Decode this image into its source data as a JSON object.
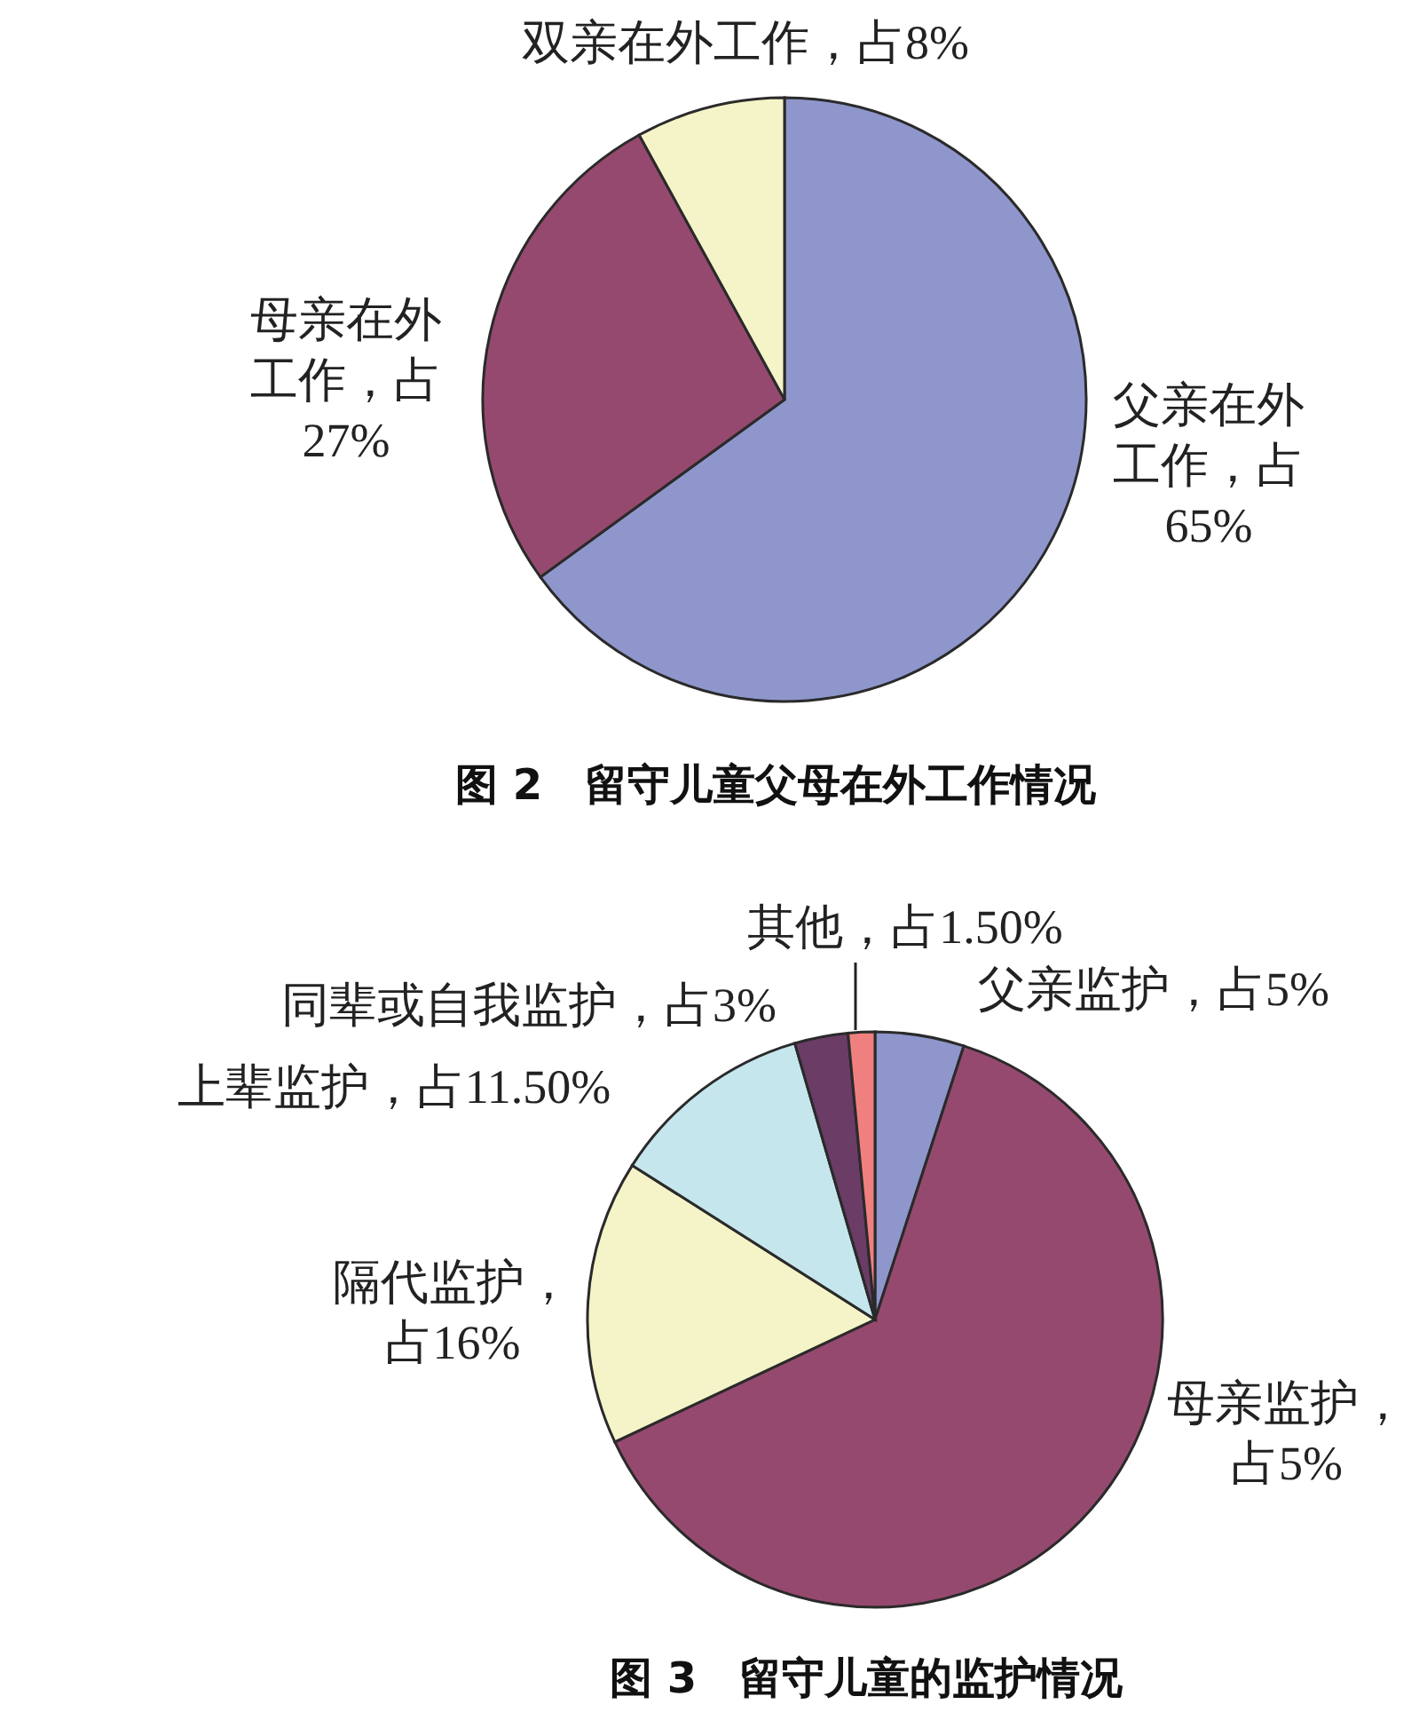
{
  "chart_data": [
    {
      "type": "pie",
      "title": "图 2　留守儿童父母在外工作情况",
      "categories": [
        "父亲在外工作",
        "母亲在外工作",
        "双亲在外工作"
      ],
      "values": [
        65,
        27,
        8
      ],
      "colors": [
        "#8e96cb",
        "#96496e",
        "#f4f4c8"
      ],
      "value_labels": [
        "，占65%",
        "，占27%",
        "，占8%"
      ]
    },
    {
      "type": "pie",
      "title": "图 3　留守儿童的监护情况",
      "categories": [
        "父亲监护",
        "母亲监护",
        "隔代监护",
        "上辈监护",
        "同辈或自我监护",
        "其他"
      ],
      "values": [
        5,
        63,
        16,
        11.5,
        3,
        1.5
      ],
      "colors": [
        "#8e96cb",
        "#96496e",
        "#f4f4c8",
        "#c5e6ec",
        "#6a3c66",
        "#f08080"
      ],
      "value_labels": [
        "，占5%",
        "，占5%",
        "，占16%",
        "，占11.50%",
        "，占3%",
        "，占1.50%"
      ]
    }
  ]
}
